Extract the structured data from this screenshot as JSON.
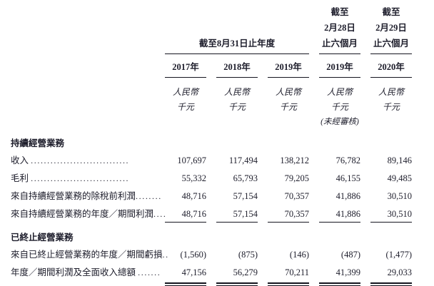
{
  "table": {
    "period_group_header": "截至8月31日止年度",
    "interim_headers": [
      {
        "line1": "截至",
        "line2": "2月28日",
        "line3": "止六個月"
      },
      {
        "line1": "截至",
        "line2": "2月29日",
        "line3": "止六個月"
      }
    ],
    "year_headers": [
      "2017年",
      "2018年",
      "2019年",
      "2019年",
      "2020年"
    ],
    "unit_line1": "人民幣",
    "unit_line2": "千元",
    "unaudited_note": "(未經審核)",
    "rows": [
      {
        "type": "section",
        "label": "持續經營業務"
      },
      {
        "type": "data",
        "label": "收入 ",
        "dots": "..............................",
        "values": [
          "107,697",
          "117,494",
          "138,212",
          "76,782",
          "89,146"
        ]
      },
      {
        "type": "data",
        "label": "毛利 ",
        "dots": "..............................",
        "values": [
          "55,332",
          "65,793",
          "79,205",
          "46,155",
          "49,485"
        ]
      },
      {
        "type": "data",
        "label": "來自持續經營業務的除稅前利潤",
        "dots": "........",
        "values": [
          "48,716",
          "57,154",
          "70,357",
          "41,886",
          "30,510"
        ]
      },
      {
        "type": "data",
        "label": "來自持續經營業務的年度／期間利潤",
        "dots": "....",
        "values": [
          "48,716",
          "57,154",
          "70,357",
          "41,886",
          "30,510"
        ],
        "rule": "single"
      },
      {
        "type": "section",
        "label": "已終止經營業務"
      },
      {
        "type": "data",
        "label": "來自已終止經營業務的年度／期間虧損",
        "dots": "..",
        "values": [
          "(1,560)",
          "(875)",
          "(146)",
          "(487)",
          "(1,477)"
        ]
      },
      {
        "type": "data",
        "label": "年度／期間利潤及全面收入總額 ",
        "dots": ".......",
        "values": [
          "47,156",
          "56,279",
          "70,211",
          "41,399",
          "29,033"
        ],
        "rule": "double"
      }
    ]
  }
}
